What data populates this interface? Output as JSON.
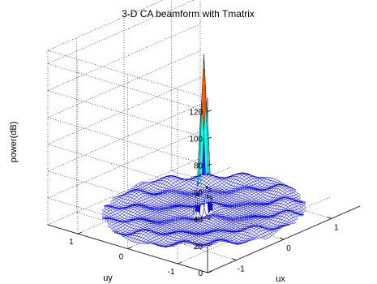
{
  "chart_data": {
    "type": "surface",
    "title": "3-D CA beamform with Tmatrix",
    "xlabel": "ux",
    "ylabel": "uy",
    "zlabel": "power(dB)",
    "x_range": [
      -1.6,
      1.6
    ],
    "y_range": [
      -1.6,
      1.6
    ],
    "z_range": [
      0,
      130
    ],
    "x_ticks": [
      {
        "value": -1,
        "label": "-1"
      },
      {
        "value": 0,
        "label": "0"
      },
      {
        "value": 1,
        "label": "1"
      }
    ],
    "y_ticks": [
      {
        "value": -1,
        "label": "-1"
      },
      {
        "value": 0,
        "label": "0"
      },
      {
        "value": 1,
        "label": "1"
      }
    ],
    "z_ticks": [
      {
        "value": 0,
        "label": "0"
      },
      {
        "value": 20,
        "label": "20"
      },
      {
        "value": 40,
        "label": "40"
      },
      {
        "value": 60,
        "label": "60"
      },
      {
        "value": 80,
        "label": "80"
      },
      {
        "value": 100,
        "label": "100"
      },
      {
        "value": 120,
        "label": "120"
      }
    ],
    "grid": true,
    "mainlobe": {
      "ux": 0,
      "uy": 0,
      "peak_db": 120
    },
    "sidelobe_level_db": 8,
    "colormap": [
      "#00008f",
      "#0000ff",
      "#00ffff",
      "#ffff00",
      "#ff0000",
      "#800000"
    ],
    "mesh_color": "#0000cc"
  }
}
